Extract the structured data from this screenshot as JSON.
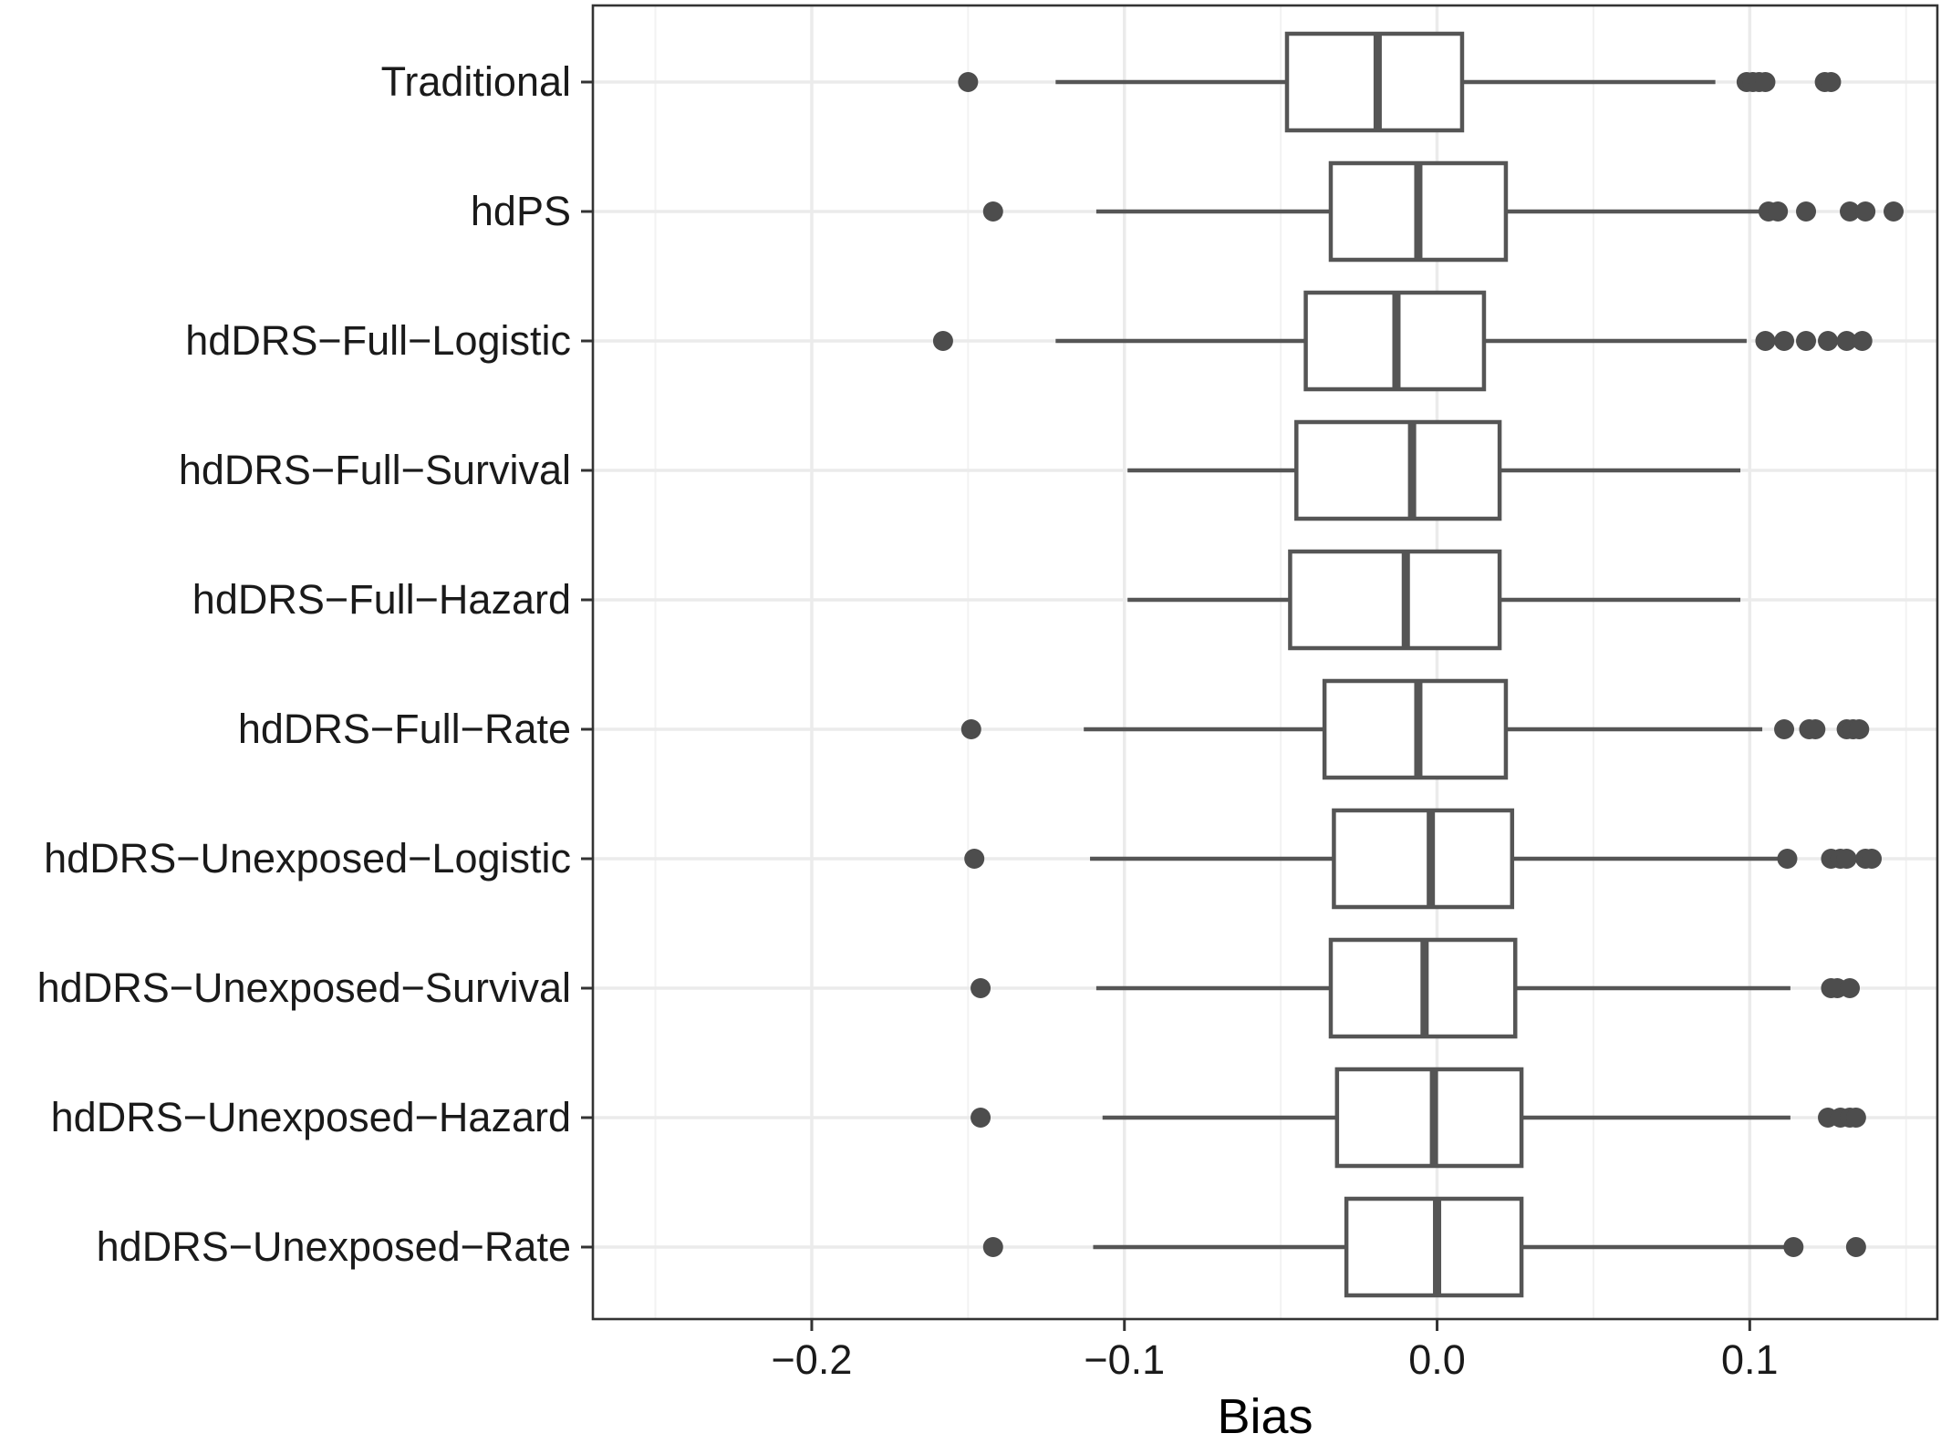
{
  "chart_data": {
    "type": "box",
    "xlabel": "Bias",
    "xlim": [
      -0.27,
      0.16
    ],
    "x_ticks": [
      -0.2,
      -0.1,
      0.0,
      0.1
    ],
    "x_tick_labels": [
      "−0.2",
      "−0.1",
      "0.0",
      "0.1"
    ],
    "grid": true,
    "legend": "none",
    "colors": {
      "box_line": "#555555",
      "box_fill": "#ffffff",
      "outlier": "#4d4d4d",
      "grid_major": "#ebebeb",
      "grid_minor": "#f2f2f2",
      "panel_border": "#333333"
    },
    "categories": [
      {
        "label": "Traditional",
        "whisker_low": -0.122,
        "q1": -0.048,
        "median": -0.019,
        "q3": 0.008,
        "whisker_high": 0.089,
        "outliers": [
          -0.15,
          0.099,
          0.101,
          0.103,
          0.105,
          0.124,
          0.126
        ]
      },
      {
        "label": "hdPS",
        "whisker_low": -0.109,
        "q1": -0.034,
        "median": -0.006,
        "q3": 0.022,
        "whisker_high": 0.106,
        "outliers": [
          -0.142,
          0.106,
          0.109,
          0.118,
          0.132,
          0.137,
          0.146
        ]
      },
      {
        "label": "hdDRS−Full−Logistic",
        "whisker_low": -0.122,
        "q1": -0.042,
        "median": -0.013,
        "q3": 0.015,
        "whisker_high": 0.099,
        "outliers": [
          -0.158,
          0.105,
          0.111,
          0.118,
          0.125,
          0.131,
          0.136
        ]
      },
      {
        "label": "hdDRS−Full−Survival",
        "whisker_low": -0.099,
        "q1": -0.045,
        "median": -0.008,
        "q3": 0.02,
        "whisker_high": 0.097,
        "outliers": []
      },
      {
        "label": "hdDRS−Full−Hazard",
        "whisker_low": -0.099,
        "q1": -0.047,
        "median": -0.01,
        "q3": 0.02,
        "whisker_high": 0.097,
        "outliers": []
      },
      {
        "label": "hdDRS−Full−Rate",
        "whisker_low": -0.113,
        "q1": -0.036,
        "median": -0.006,
        "q3": 0.022,
        "whisker_high": 0.104,
        "outliers": [
          -0.149,
          0.111,
          0.119,
          0.121,
          0.131,
          0.133,
          0.135
        ]
      },
      {
        "label": "hdDRS−Unexposed−Logistic",
        "whisker_low": -0.111,
        "q1": -0.033,
        "median": -0.002,
        "q3": 0.024,
        "whisker_high": 0.112,
        "outliers": [
          -0.148,
          0.112,
          0.126,
          0.129,
          0.131,
          0.137,
          0.139
        ]
      },
      {
        "label": "hdDRS−Unexposed−Survival",
        "whisker_low": -0.109,
        "q1": -0.034,
        "median": -0.004,
        "q3": 0.025,
        "whisker_high": 0.113,
        "outliers": [
          -0.146,
          0.126,
          0.128,
          0.132
        ]
      },
      {
        "label": "hdDRS−Unexposed−Hazard",
        "whisker_low": -0.107,
        "q1": -0.032,
        "median": -0.001,
        "q3": 0.027,
        "whisker_high": 0.113,
        "outliers": [
          -0.146,
          0.125,
          0.129,
          0.132,
          0.134
        ]
      },
      {
        "label": "hdDRS−Unexposed−Rate",
        "whisker_low": -0.11,
        "q1": -0.029,
        "median": 0.0,
        "q3": 0.027,
        "whisker_high": 0.114,
        "outliers": [
          -0.142,
          0.114,
          0.134
        ]
      }
    ]
  }
}
